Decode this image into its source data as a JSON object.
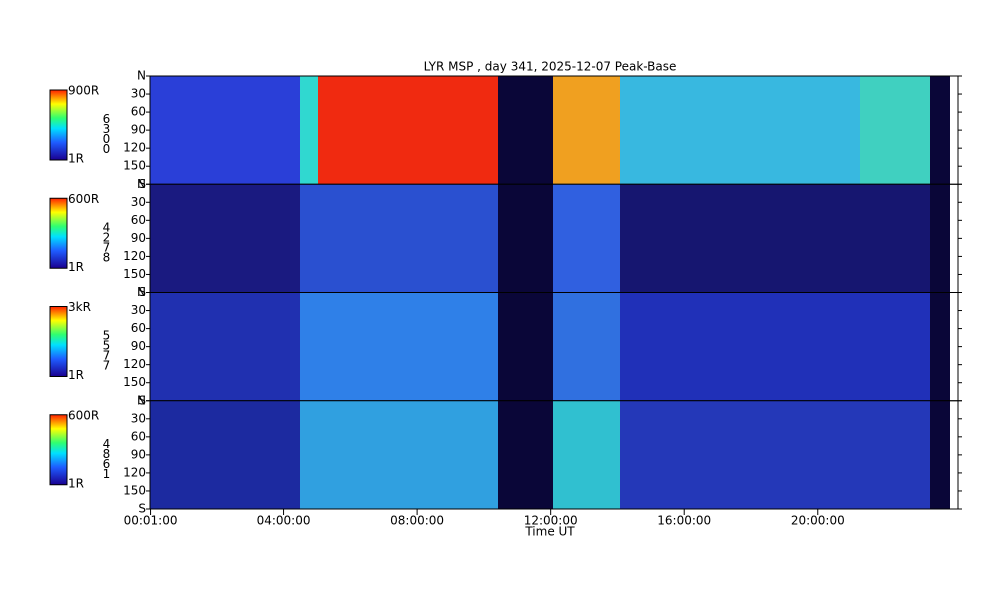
{
  "chart_data": {
    "type": "heatmap",
    "title": "LYR MSP , day 341, 2025-12-07 Peak-Base",
    "xlabel": "Time UT",
    "xlim": [
      0,
      24.2
    ],
    "xticks": [
      {
        "value": 0.0167,
        "label": "00:01:00"
      },
      {
        "value": 4,
        "label": "04:00:00"
      },
      {
        "value": 8,
        "label": "08:00:00"
      },
      {
        "value": 12,
        "label": "12:00:00"
      },
      {
        "value": 16,
        "label": "16:00:00"
      },
      {
        "value": 20,
        "label": "20:00:00"
      }
    ],
    "ylim": [
      0,
      180
    ],
    "yticks": [
      {
        "value": 0,
        "label": "N"
      },
      30,
      60,
      90,
      120,
      150,
      {
        "value": 180,
        "label": "S"
      }
    ],
    "panels": [
      {
        "channel": "6300",
        "cmax": "900R",
        "cmin": "1R"
      },
      {
        "channel": "4278",
        "cmax": "600R",
        "cmin": "1R"
      },
      {
        "channel": "5577",
        "cmax": "3kR",
        "cmin": "1R"
      },
      {
        "channel": "4861",
        "cmax": "600R",
        "cmin": "1R"
      }
    ]
  }
}
